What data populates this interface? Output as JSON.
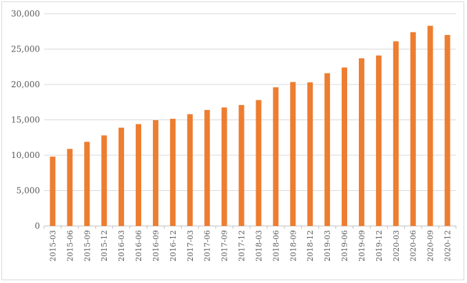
{
  "chart_data": {
    "type": "bar",
    "title": "",
    "xlabel": "",
    "ylabel": "",
    "ylim": [
      0,
      30000
    ],
    "yticks": [
      0,
      5000,
      10000,
      15000,
      20000,
      25000,
      30000
    ],
    "ytick_labels": [
      "0",
      "5,000",
      "10,000",
      "15,000",
      "20,000",
      "25,000",
      "30,000"
    ],
    "grid": true,
    "legend": "none",
    "bar_color": "#ED7D31",
    "grid_color": "#D9D9D9",
    "categories": [
      "2015-03",
      "2015-06",
      "2015-09",
      "2015-12",
      "2016-03",
      "2016-06",
      "2016-09",
      "2016-12",
      "2017-03",
      "2017-06",
      "2017-09",
      "2017-12",
      "2018-03",
      "2018-06",
      "2018-09",
      "2018-12",
      "2019-03",
      "2019-06",
      "2019-09",
      "2019-12",
      "2020-03",
      "2020-06",
      "2020-09",
      "2020-12"
    ],
    "values": [
      9800,
      10900,
      11900,
      12800,
      13900,
      14400,
      14950,
      15150,
      15800,
      16400,
      16750,
      17100,
      17800,
      19600,
      20350,
      20300,
      21600,
      22400,
      23700,
      24100,
      26100,
      27400,
      28300,
      27000
    ]
  }
}
